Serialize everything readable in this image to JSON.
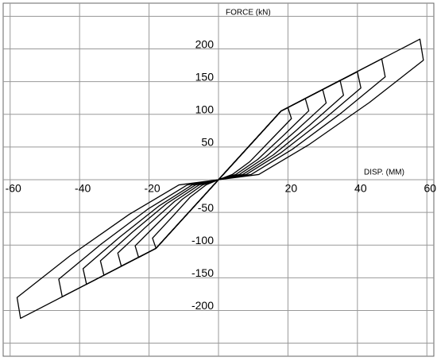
{
  "chart_data": {
    "type": "line",
    "x_label": "DISP. (MM)",
    "y_label": "FORCE (kN)",
    "xlim": [
      -62,
      62
    ],
    "ylim": [
      -270,
      270
    ],
    "xticks": [
      -60,
      -40,
      -20,
      20,
      40,
      60
    ],
    "yticks": [
      -200,
      -150,
      -100,
      -50,
      50,
      100,
      150,
      200
    ],
    "xgrid": [
      -60,
      -40,
      -20,
      0,
      20,
      40,
      60
    ],
    "ygrid": [
      -250,
      -200,
      -150,
      -100,
      -50,
      0,
      50,
      100,
      150,
      200,
      250
    ],
    "grid": true,
    "color": "#000000",
    "series": [
      {
        "x": [
          0,
          18,
          20,
          21,
          15,
          9,
          4,
          0,
          -18,
          -19,
          -13.5,
          -8.1,
          -3.6,
          0
        ],
        "values": [
          0,
          105,
          110,
          93.5,
          60.5,
          27.5,
          8,
          0,
          -105,
          -89.3,
          -57.8,
          -26.3,
          -8,
          0
        ]
      },
      {
        "x": [
          0,
          18,
          25,
          26,
          18.8,
          11.3,
          5,
          0,
          -18,
          -23,
          -24,
          -17.3,
          -10.4,
          -4.6,
          0
        ],
        "values": [
          0,
          105,
          124,
          105.4,
          68.2,
          31,
          8,
          0,
          -105,
          -119,
          -101.2,
          -65.5,
          -29.8,
          -8,
          0
        ]
      },
      {
        "x": [
          0,
          18,
          30,
          31,
          22.5,
          13.5,
          6,
          0,
          -18,
          -28,
          -29,
          -21,
          -12.6,
          -5.6,
          0
        ],
        "values": [
          0,
          105,
          138,
          117.3,
          75.9,
          34.5,
          8,
          0,
          -105,
          -132,
          -112.2,
          -72.6,
          -33,
          -8,
          0
        ]
      },
      {
        "x": [
          0,
          18,
          35,
          36,
          26.3,
          15.8,
          7,
          0,
          -18,
          -33,
          -34,
          -24.8,
          -14.9,
          -6.6,
          0
        ],
        "values": [
          0,
          105,
          152,
          129.2,
          83.6,
          38,
          8,
          0,
          -105,
          -146,
          -124.1,
          -80.3,
          -36.5,
          -8,
          0
        ]
      },
      {
        "x": [
          0,
          18,
          40,
          41,
          30,
          18,
          8,
          0,
          -18,
          -38,
          -39,
          -28.5,
          -17.1,
          -7.6,
          0
        ],
        "values": [
          0,
          105,
          165,
          140.3,
          90.8,
          41.3,
          8,
          0,
          -105,
          -160,
          -136,
          -88,
          -40,
          -8,
          0
        ]
      },
      {
        "x": [
          0,
          18,
          47,
          48,
          35.3,
          21.2,
          9.4,
          0,
          -18,
          -45,
          -46,
          -33.8,
          -20.3,
          -9,
          0
        ],
        "values": [
          0,
          105,
          185,
          157.3,
          101.8,
          46.3,
          8,
          0,
          -105,
          -179,
          -152.2,
          -98.5,
          -44.8,
          -8,
          0
        ]
      },
      {
        "x": [
          0,
          18,
          58,
          59,
          43.5,
          26.1,
          11.6,
          0,
          -18,
          -57,
          -58,
          -42.8,
          -25.7,
          -11.4,
          0
        ],
        "values": [
          0,
          105,
          215,
          182.8,
          118.3,
          53.8,
          8,
          0,
          -105,
          -212,
          -180.2,
          -116.6,
          -53,
          -8,
          0
        ]
      }
    ]
  }
}
